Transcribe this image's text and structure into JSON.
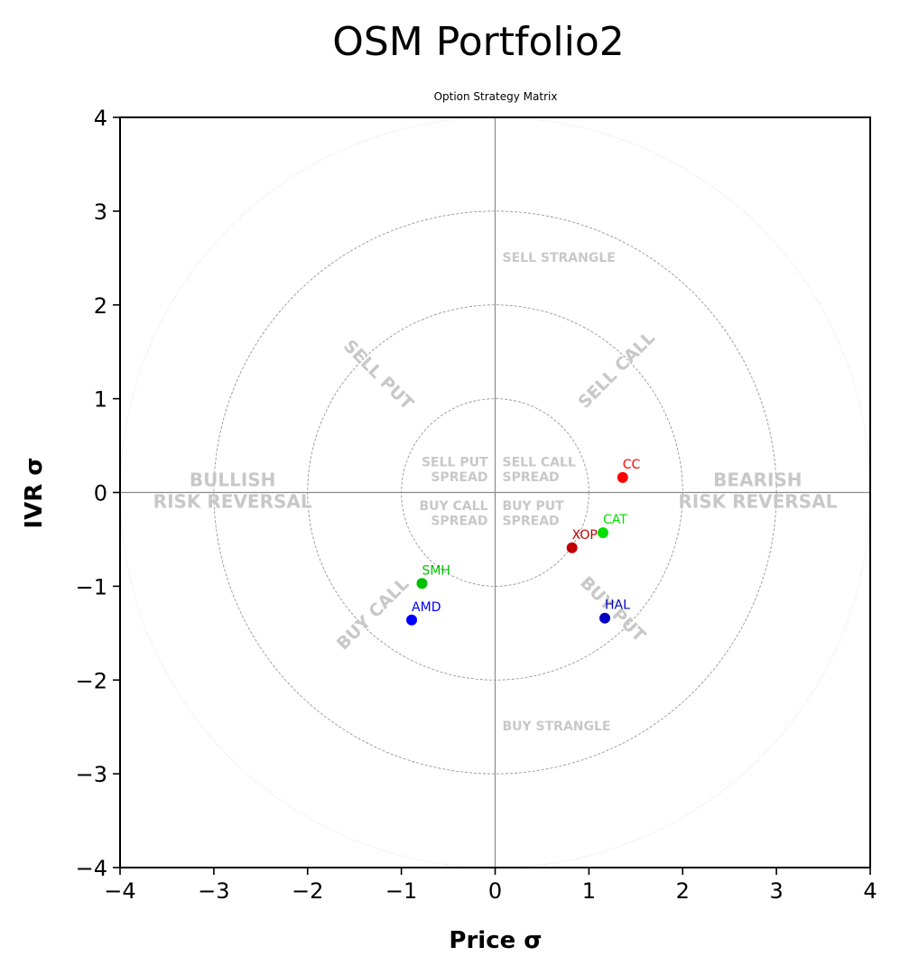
{
  "chart_data": {
    "type": "scatter",
    "title": "OSM Portfolio2",
    "subtitle": "Option Strategy Matrix",
    "xlabel": "Price σ",
    "ylabel": "IVR σ",
    "xlim": [
      -4,
      4
    ],
    "ylim": [
      -4,
      4
    ],
    "xticks": [
      "−4",
      "−3",
      "−2",
      "−1",
      "0",
      "1",
      "2",
      "3",
      "4"
    ],
    "yticks": [
      "−4",
      "−3",
      "−2",
      "−1",
      "0",
      "1",
      "2",
      "3",
      "4"
    ],
    "grid": "concentric circles at radius 1, 2, 3, 4",
    "circles": [
      1,
      2,
      3,
      4
    ],
    "regions": [
      {
        "text": "SELL STRANGLE",
        "x": 0,
        "y": 2.5
      },
      {
        "text": "BUY STRANGLE",
        "x": 0,
        "y": -2.5
      },
      {
        "text": "SELL PUT",
        "x": -1.25,
        "y": 1.25
      },
      {
        "text": "SELL CALL",
        "x": 1.3,
        "y": 1.3
      },
      {
        "text": "BUY CALL",
        "x": -1.3,
        "y": -1.3
      },
      {
        "text": "BUY PUT",
        "x": 1.25,
        "y": -1.25
      },
      {
        "text": "BULLISH",
        "x": -2.8,
        "y": 0.12
      },
      {
        "text": "RISK REVERSAL",
        "x": -2.8,
        "y": -0.11
      },
      {
        "text": "BEARISH",
        "x": 2.8,
        "y": 0.12
      },
      {
        "text": "RISK REVERSAL",
        "x": 2.8,
        "y": -0.11
      },
      {
        "text": "SELL PUT",
        "x": -0.35,
        "y": 0.32
      },
      {
        "text": "SPREAD",
        "x": -0.35,
        "y": 0.16
      },
      {
        "text": "SELL CALL",
        "x": 0.4,
        "y": 0.32
      },
      {
        "text": "SPREAD",
        "x": 0.3,
        "y": 0.16
      },
      {
        "text": "BUY CALL",
        "x": -0.4,
        "y": -0.15
      },
      {
        "text": "SPREAD",
        "x": -0.35,
        "y": -0.31
      },
      {
        "text": "BUY PUT",
        "x": 0.33,
        "y": -0.15
      },
      {
        "text": "SPREAD",
        "x": 0.3,
        "y": -0.31
      }
    ],
    "points": [
      {
        "label": "CC",
        "x": 1.36,
        "y": 0.16,
        "color": "#ff0000"
      },
      {
        "label": "CAT",
        "x": 1.15,
        "y": -0.43,
        "color": "#00e000"
      },
      {
        "label": "XOP",
        "x": 0.82,
        "y": -0.59,
        "color": "#c00000"
      },
      {
        "label": "SMH",
        "x": -0.78,
        "y": -0.97,
        "color": "#00c000"
      },
      {
        "label": "AMD",
        "x": -0.89,
        "y": -1.36,
        "color": "#0000ff"
      },
      {
        "label": "HAL",
        "x": 1.17,
        "y": -1.34,
        "color": "#0000c0"
      }
    ]
  }
}
